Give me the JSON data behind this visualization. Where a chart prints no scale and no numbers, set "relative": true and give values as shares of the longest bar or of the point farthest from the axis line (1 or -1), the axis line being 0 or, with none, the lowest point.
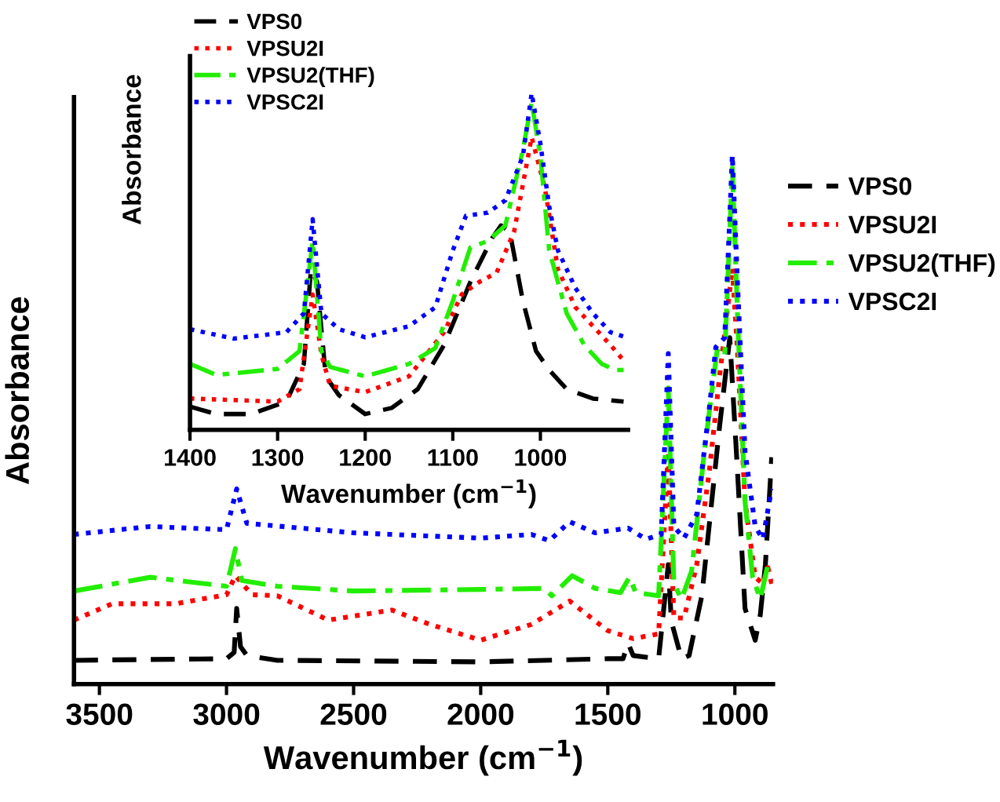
{
  "chart_data": [
    {
      "type": "line",
      "relative": true,
      "xlabel": "Wavenumber (cm$^{−1}$)",
      "ylabel": "Absorbance",
      "xlim": [
        3600,
        850
      ],
      "xticks": [
        3500,
        3000,
        2500,
        2000,
        1500,
        1000
      ],
      "grid": false,
      "legend": "right",
      "tick_labels": "x",
      "series": [
        {
          "name": "VPS0",
          "color": "#000000",
          "line_style": "dashed",
          "x": [
            3600,
            3000,
            2970,
            2960,
            2945,
            2920,
            2800,
            2000,
            1500,
            1440,
            1420,
            1400,
            1300,
            1262,
            1250,
            1210,
            1180,
            1130,
            1060,
            1020,
            990,
            960,
            920,
            900,
            880,
            855
          ],
          "values": [
            0.045,
            0.048,
            0.06,
            0.143,
            0.071,
            0.054,
            0.045,
            0.042,
            0.048,
            0.048,
            0.077,
            0.054,
            0.048,
            0.226,
            0.119,
            0.048,
            0.054,
            0.167,
            0.488,
            0.655,
            0.405,
            0.143,
            0.083,
            0.131,
            0.226,
            0.429
          ]
        },
        {
          "name": "VPSU2I",
          "color": "#ff0000",
          "line_style": "dotted",
          "x": [
            3600,
            3450,
            3200,
            3000,
            2965,
            2900,
            2800,
            2600,
            2350,
            2200,
            2000,
            1800,
            1650,
            1500,
            1400,
            1300,
            1262,
            1240,
            1200,
            1150,
            1100,
            1060,
            1010,
            990,
            960,
            920,
            890,
            870,
            850
          ],
          "values": [
            0.121,
            0.152,
            0.152,
            0.169,
            0.205,
            0.169,
            0.167,
            0.121,
            0.14,
            0.113,
            0.083,
            0.113,
            0.157,
            0.101,
            0.086,
            0.095,
            0.44,
            0.125,
            0.125,
            0.226,
            0.405,
            0.583,
            0.786,
            0.631,
            0.345,
            0.202,
            0.19,
            0.22,
            0.179
          ]
        },
        {
          "name": "VPSU2(THF)",
          "color": "#22ee00",
          "line_style": "dashdot",
          "x": [
            3600,
            3300,
            3000,
            2965,
            2940,
            2800,
            2500,
            2000,
            1750,
            1720,
            1640,
            1550,
            1450,
            1415,
            1390,
            1300,
            1262,
            1240,
            1210,
            1170,
            1120,
            1070,
            1040,
            1010,
            990,
            960,
            930,
            900,
            870,
            850
          ],
          "values": [
            0.176,
            0.202,
            0.185,
            0.256,
            0.196,
            0.185,
            0.176,
            0.179,
            0.181,
            0.167,
            0.205,
            0.181,
            0.173,
            0.202,
            0.173,
            0.167,
            0.56,
            0.19,
            0.161,
            0.214,
            0.44,
            0.631,
            0.619,
            0.976,
            0.702,
            0.345,
            0.202,
            0.161,
            0.226,
            0.232
          ]
        },
        {
          "name": "VPSC2I",
          "color": "#0000ff",
          "line_style": "dotted",
          "x": [
            3600,
            3300,
            3000,
            2960,
            2920,
            2500,
            2000,
            1800,
            1730,
            1650,
            1550,
            1420,
            1350,
            1290,
            1262,
            1240,
            1200,
            1150,
            1100,
            1075,
            1040,
            1010,
            990,
            960,
            920,
            890,
            860,
            850
          ],
          "values": [
            0.283,
            0.298,
            0.292,
            0.369,
            0.304,
            0.286,
            0.276,
            0.283,
            0.271,
            0.307,
            0.286,
            0.295,
            0.274,
            0.283,
            0.625,
            0.298,
            0.276,
            0.321,
            0.524,
            0.637,
            0.655,
            1.0,
            0.762,
            0.44,
            0.298,
            0.274,
            0.357,
            0.369
          ]
        }
      ]
    },
    {
      "type": "line",
      "relative": true,
      "xlabel": "Wavenumber (cm$^{−1}$)",
      "ylabel": "Absorbance",
      "xlim": [
        1400,
        900
      ],
      "xticks": [
        1400,
        1300,
        1200,
        1100,
        1000
      ],
      "grid": false,
      "legend": "top left",
      "tick_labels": "x",
      "series": [
        {
          "name": "VPS0",
          "color": "#000000",
          "line_style": "dashed",
          "x": [
            1400,
            1370,
            1330,
            1290,
            1270,
            1262,
            1255,
            1245,
            1230,
            1200,
            1170,
            1140,
            1110,
            1080,
            1055,
            1045,
            1035,
            1020,
            1005,
            990,
            970,
            940,
            905
          ],
          "values": [
            0.069,
            0.047,
            0.047,
            0.084,
            0.196,
            0.477,
            0.44,
            0.159,
            0.103,
            0.047,
            0.065,
            0.121,
            0.252,
            0.439,
            0.57,
            0.607,
            0.589,
            0.383,
            0.234,
            0.178,
            0.121,
            0.093,
            0.084
          ]
        },
        {
          "name": "VPSU2I",
          "color": "#ff0000",
          "line_style": "dotted",
          "x": [
            1400,
            1300,
            1275,
            1260,
            1250,
            1240,
            1200,
            1150,
            1110,
            1090,
            1070,
            1050,
            1030,
            1010,
            995,
            980,
            960,
            940,
            920,
            905
          ],
          "values": [
            0.093,
            0.084,
            0.121,
            0.402,
            0.224,
            0.131,
            0.112,
            0.159,
            0.29,
            0.402,
            0.439,
            0.467,
            0.589,
            0.869,
            0.72,
            0.477,
            0.364,
            0.308,
            0.252,
            0.206
          ]
        },
        {
          "name": "VPSU2(THF)",
          "color": "#22ee00",
          "line_style": "dashdot",
          "x": [
            1400,
            1370,
            1300,
            1275,
            1260,
            1250,
            1240,
            1200,
            1150,
            1120,
            1100,
            1080,
            1060,
            1040,
            1020,
            1010,
            1000,
            990,
            970,
            950,
            930,
            915,
            905
          ],
          "values": [
            0.196,
            0.163,
            0.181,
            0.234,
            0.561,
            0.234,
            0.187,
            0.159,
            0.196,
            0.243,
            0.383,
            0.542,
            0.561,
            0.607,
            0.832,
            0.972,
            0.813,
            0.533,
            0.346,
            0.252,
            0.196,
            0.178,
            0.178
          ]
        },
        {
          "name": "VPSC2I",
          "color": "#0000ff",
          "line_style": "dotted",
          "x": [
            1400,
            1350,
            1290,
            1270,
            1260,
            1250,
            1230,
            1200,
            1150,
            1120,
            1100,
            1085,
            1060,
            1040,
            1020,
            1010,
            1000,
            990,
            980,
            960,
            940,
            920,
            905
          ],
          "values": [
            0.299,
            0.271,
            0.29,
            0.346,
            0.626,
            0.346,
            0.299,
            0.275,
            0.308,
            0.364,
            0.533,
            0.636,
            0.645,
            0.682,
            0.813,
            1.0,
            0.85,
            0.664,
            0.533,
            0.421,
            0.346,
            0.29,
            0.277
          ]
        }
      ]
    }
  ]
}
